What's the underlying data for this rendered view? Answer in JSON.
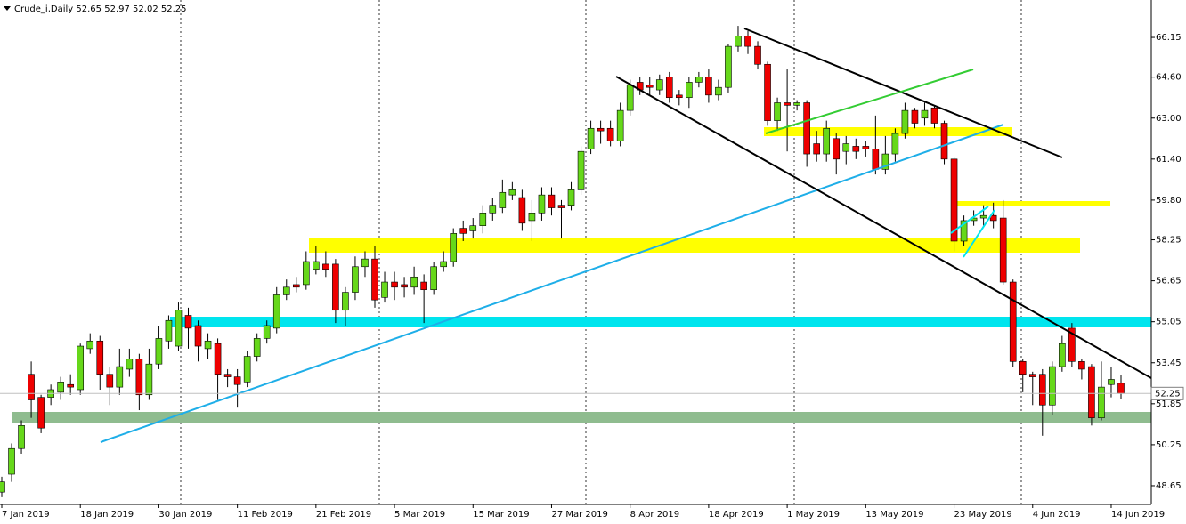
{
  "chart_data": {
    "type": "candlestick",
    "title": "Crude_i,Daily",
    "categories": [
      "7 Jan 2019",
      null,
      null,
      null,
      null,
      null,
      null,
      null,
      "18 Jan 2019",
      null,
      null,
      null,
      null,
      null,
      null,
      null,
      "30 Jan 2019",
      null,
      null,
      null,
      null,
      null,
      null,
      null,
      "11 Feb 2019",
      null,
      null,
      null,
      null,
      null,
      null,
      null,
      "21 Feb 2019",
      null,
      null,
      null,
      null,
      null,
      null,
      null,
      "5 Mar 2019",
      null,
      null,
      null,
      null,
      null,
      null,
      null,
      "15 Mar 2019",
      null,
      null,
      null,
      null,
      null,
      null,
      null,
      "27 Mar 2019",
      null,
      null,
      null,
      null,
      null,
      null,
      null,
      "8 Apr 2019",
      null,
      null,
      null,
      null,
      null,
      null,
      null,
      "18 Apr 2019",
      null,
      null,
      null,
      null,
      null,
      null,
      null,
      "1 May 2019",
      null,
      null,
      null,
      null,
      null,
      null,
      null,
      "13 May 2019",
      null,
      null,
      null,
      null,
      null,
      null,
      null,
      null,
      "23 May 2019",
      null,
      null,
      null,
      null,
      null,
      null,
      null,
      "4 Jun 2019",
      null,
      null,
      null,
      null,
      null,
      null,
      null,
      "14 Jun 2019",
      null
    ],
    "open": [
      48.4,
      49.1,
      50.1,
      53.0,
      52.1,
      52.1,
      52.3,
      52.6,
      52.4,
      54.0,
      54.3,
      53.0,
      52.5,
      53.2,
      53.6,
      52.2,
      53.4,
      54.3,
      54.1,
      55.3,
      54.9,
      54.0,
      54.2,
      53.0,
      52.9,
      52.7,
      53.7,
      54.4,
      54.8,
      56.1,
      56.5,
      56.5,
      57.1,
      57.3,
      57.3,
      55.5,
      56.2,
      57.2,
      57.5,
      56.0,
      56.6,
      56.5,
      56.4,
      56.6,
      56.3,
      57.2,
      57.4,
      58.7,
      58.6,
      58.8,
      59.3,
      59.5,
      60.0,
      59.9,
      59.0,
      59.3,
      60.0,
      59.6,
      59.6,
      60.2,
      61.8,
      62.6,
      62.6,
      62.1,
      63.3,
      64.4,
      64.3,
      64.1,
      64.6,
      63.9,
      63.8,
      64.4,
      64.6,
      63.9,
      64.2,
      65.8,
      66.2,
      65.8,
      65.1,
      62.9,
      63.6,
      63.5,
      63.6,
      62.0,
      61.6,
      62.2,
      61.7,
      61.9,
      61.9,
      61.8,
      61.0,
      61.6,
      62.4,
      63.3,
      63.0,
      63.4,
      62.8,
      61.4,
      58.2,
      59.0,
      59.1,
      59.2,
      59.1,
      56.6,
      53.5,
      53.0,
      53.0,
      51.8,
      53.3,
      54.8,
      53.5,
      53.3,
      51.3,
      52.6,
      52.65
    ],
    "high": [
      49.0,
      50.3,
      51.2,
      53.5,
      52.2,
      52.6,
      52.9,
      53.0,
      54.2,
      54.6,
      54.5,
      53.3,
      54.0,
      54.0,
      53.8,
      54.0,
      54.9,
      55.3,
      55.8,
      55.6,
      55.1,
      54.6,
      54.4,
      53.2,
      53.2,
      53.9,
      54.6,
      55.1,
      56.4,
      56.7,
      56.8,
      57.8,
      58.0,
      57.8,
      57.5,
      56.4,
      57.6,
      57.8,
      58.0,
      57.0,
      57.0,
      56.8,
      57.2,
      56.9,
      57.4,
      57.8,
      58.7,
      59.0,
      59.1,
      59.6,
      59.9,
      60.6,
      60.5,
      60.2,
      59.8,
      60.3,
      60.3,
      59.8,
      60.5,
      61.9,
      62.9,
      62.9,
      62.9,
      63.6,
      64.5,
      64.6,
      64.6,
      64.7,
      64.8,
      64.1,
      64.6,
      64.8,
      64.9,
      64.5,
      65.9,
      66.6,
      66.4,
      66.0,
      65.2,
      63.8,
      64.9,
      63.7,
      63.7,
      62.5,
      62.9,
      62.4,
      62.3,
      62.2,
      62.1,
      63.1,
      62.3,
      62.6,
      63.6,
      63.4,
      63.6,
      63.5,
      62.9,
      61.5,
      59.2,
      59.4,
      59.6,
      59.7,
      59.8,
      56.7,
      53.6,
      53.1,
      53.2,
      53.5,
      54.5,
      55.0,
      53.6,
      53.4,
      53.5,
      53.3,
      52.97
    ],
    "low": [
      48.2,
      48.8,
      49.9,
      51.3,
      50.7,
      51.8,
      52.0,
      52.2,
      52.2,
      53.8,
      52.4,
      51.8,
      52.2,
      52.9,
      51.6,
      52.0,
      53.2,
      54.0,
      53.9,
      54.0,
      53.5,
      53.6,
      52.0,
      52.5,
      51.7,
      52.5,
      53.5,
      54.2,
      54.6,
      55.9,
      56.2,
      56.3,
      56.9,
      56.8,
      55.0,
      54.9,
      55.9,
      56.8,
      55.6,
      55.8,
      55.9,
      56.0,
      56.1,
      55.0,
      56.1,
      57.0,
      57.2,
      58.2,
      58.3,
      58.5,
      59.0,
      59.3,
      59.8,
      58.6,
      58.2,
      59.0,
      59.2,
      58.3,
      59.4,
      60.0,
      61.6,
      62.0,
      61.9,
      61.9,
      63.1,
      63.9,
      63.9,
      63.9,
      63.6,
      63.5,
      63.4,
      64.2,
      63.6,
      63.7,
      64.0,
      65.6,
      65.5,
      64.9,
      62.7,
      62.5,
      61.7,
      63.3,
      61.1,
      61.3,
      61.3,
      60.8,
      61.2,
      61.4,
      61.5,
      60.8,
      60.8,
      61.3,
      62.2,
      62.6,
      62.7,
      62.6,
      61.2,
      57.8,
      58.0,
      58.8,
      58.8,
      58.7,
      56.5,
      53.3,
      52.3,
      51.8,
      50.6,
      51.4,
      53.1,
      53.3,
      52.8,
      51.0,
      51.2,
      52.1,
      52.02
    ],
    "close": [
      48.8,
      50.1,
      51.0,
      52.0,
      50.9,
      52.4,
      52.7,
      52.5,
      54.1,
      54.3,
      53.0,
      52.5,
      53.3,
      53.6,
      52.2,
      53.4,
      54.4,
      55.1,
      55.5,
      54.8,
      54.1,
      54.3,
      53.0,
      52.9,
      52.6,
      53.7,
      54.4,
      54.9,
      56.1,
      56.4,
      56.4,
      57.4,
      57.4,
      57.1,
      55.5,
      56.2,
      57.2,
      57.5,
      55.9,
      56.6,
      56.4,
      56.4,
      56.8,
      56.3,
      57.2,
      57.4,
      58.5,
      58.5,
      58.8,
      59.3,
      59.6,
      60.1,
      60.2,
      58.9,
      59.3,
      60.0,
      59.5,
      59.5,
      60.2,
      61.7,
      62.6,
      62.5,
      62.1,
      63.3,
      64.3,
      64.1,
      64.2,
      64.5,
      63.8,
      63.8,
      64.4,
      64.6,
      63.9,
      64.2,
      65.8,
      66.2,
      65.8,
      65.1,
      62.9,
      63.6,
      63.5,
      63.6,
      61.6,
      61.6,
      62.6,
      61.4,
      62.0,
      61.7,
      61.8,
      61.0,
      61.6,
      62.4,
      63.3,
      62.8,
      63.3,
      62.8,
      61.4,
      58.2,
      59.0,
      59.1,
      59.2,
      59.0,
      56.6,
      53.5,
      53.0,
      52.9,
      51.8,
      53.3,
      54.2,
      53.5,
      53.2,
      51.3,
      52.5,
      52.8,
      52.25
    ],
    "up_color": "#66d81a",
    "down_color": "#ee0000",
    "ylim": [
      47.92,
      67.61
    ],
    "yticks": [
      66.15,
      {
        "value": 64.6,
        "label": "64.60"
      },
      {
        "value": 63.0,
        "label": "63.00"
      },
      {
        "value": 61.4,
        "label": "61.40"
      },
      {
        "value": 59.8,
        "label": "59.80"
      },
      58.25,
      56.65,
      55.05,
      53.45,
      51.85,
      50.25,
      48.65
    ]
  }
}
